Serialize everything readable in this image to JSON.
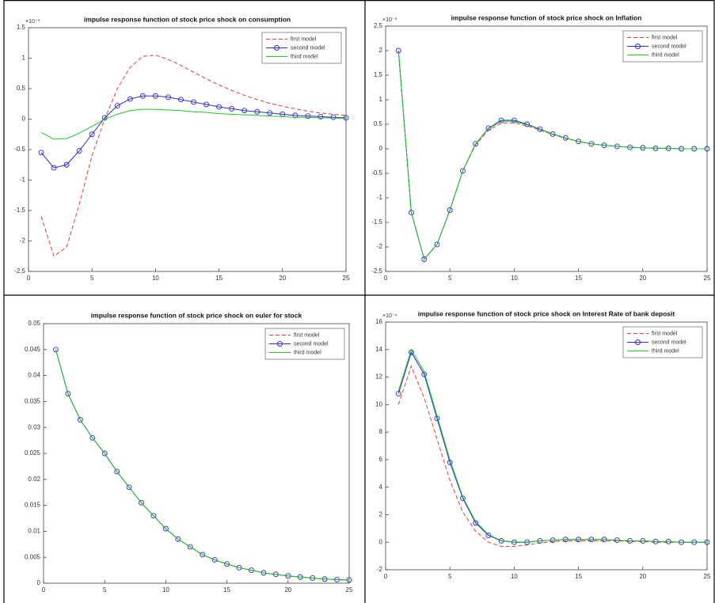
{
  "chart_data": [
    {
      "type": "line",
      "title": "impulse response function of stock price shock on consumption",
      "y_multiplier": "×10⁻³",
      "x": [
        1,
        2,
        3,
        4,
        5,
        6,
        7,
        8,
        9,
        10,
        11,
        12,
        13,
        14,
        15,
        16,
        17,
        18,
        19,
        20,
        21,
        22,
        23,
        24,
        25
      ],
      "xlim": [
        0,
        25
      ],
      "xticks": [
        0,
        5,
        10,
        15,
        20,
        25
      ],
      "ylim": [
        -2.5,
        1.5
      ],
      "yticks": [
        -2.5,
        -2,
        -1.5,
        -1,
        -0.5,
        0,
        0.5,
        1,
        1.5
      ],
      "legend": "upper right",
      "series": [
        {
          "name": "first model",
          "color": "#e03c3c",
          "linestyle": "dashed",
          "values": [
            -1.6,
            -2.25,
            -2.1,
            -1.4,
            -0.6,
            0.0,
            0.5,
            0.85,
            1.03,
            1.05,
            0.98,
            0.88,
            0.77,
            0.66,
            0.56,
            0.47,
            0.39,
            0.32,
            0.26,
            0.21,
            0.17,
            0.13,
            0.1,
            0.08,
            0.06
          ]
        },
        {
          "name": "second model",
          "color": "#2b2bd6",
          "linestyle": "solid",
          "marker": "o",
          "values": [
            -0.55,
            -0.8,
            -0.75,
            -0.52,
            -0.25,
            0.02,
            0.22,
            0.33,
            0.38,
            0.38,
            0.36,
            0.32,
            0.28,
            0.24,
            0.2,
            0.17,
            0.14,
            0.12,
            0.1,
            0.08,
            0.06,
            0.05,
            0.04,
            0.03,
            0.02
          ]
        },
        {
          "name": "third model",
          "color": "#22c722",
          "linestyle": "solid",
          "values": [
            -0.22,
            -0.33,
            -0.32,
            -0.23,
            -0.12,
            0.0,
            0.08,
            0.14,
            0.16,
            0.16,
            0.15,
            0.14,
            0.12,
            0.11,
            0.09,
            0.08,
            0.07,
            0.06,
            0.05,
            0.04,
            0.03,
            0.03,
            0.02,
            0.02,
            0.01
          ]
        }
      ]
    },
    {
      "type": "line",
      "title": "impulse response function of  stock price shock on Inflation",
      "y_multiplier": "×10⁻³",
      "x": [
        1,
        2,
        3,
        4,
        5,
        6,
        7,
        8,
        9,
        10,
        11,
        12,
        13,
        14,
        15,
        16,
        17,
        18,
        19,
        20,
        21,
        22,
        23,
        24,
        25
      ],
      "xlim": [
        0,
        25
      ],
      "xticks": [
        0,
        5,
        10,
        15,
        20,
        25
      ],
      "ylim": [
        -2.5,
        2.5
      ],
      "yticks": [
        -2.5,
        -2,
        -1.5,
        -1,
        -0.5,
        0,
        0.5,
        1,
        1.5,
        2,
        2.5
      ],
      "legend": "upper right",
      "series": [
        {
          "name": "first model",
          "color": "#e03c3c",
          "linestyle": "dashed",
          "values": [
            2.0,
            -1.3,
            -2.25,
            -1.95,
            -1.25,
            -0.45,
            0.08,
            0.38,
            0.52,
            0.53,
            0.47,
            0.38,
            0.29,
            0.21,
            0.15,
            0.1,
            0.07,
            0.05,
            0.03,
            0.02,
            0.01,
            0.01,
            0.0,
            0.0,
            0.0
          ]
        },
        {
          "name": "second model",
          "color": "#2b2bd6",
          "linestyle": "solid",
          "marker": "o",
          "values": [
            2.0,
            -1.3,
            -2.25,
            -1.95,
            -1.25,
            -0.45,
            0.1,
            0.42,
            0.58,
            0.58,
            0.5,
            0.4,
            0.3,
            0.22,
            0.15,
            0.1,
            0.07,
            0.05,
            0.03,
            0.02,
            0.01,
            0.01,
            0.0,
            0.0,
            0.0
          ]
        },
        {
          "name": "third model",
          "color": "#22c722",
          "linestyle": "solid",
          "values": [
            2.0,
            -1.3,
            -2.25,
            -1.95,
            -1.25,
            -0.45,
            0.1,
            0.41,
            0.56,
            0.56,
            0.49,
            0.39,
            0.3,
            0.22,
            0.15,
            0.1,
            0.07,
            0.05,
            0.03,
            0.02,
            0.01,
            0.01,
            0.0,
            0.0,
            0.0
          ]
        }
      ]
    },
    {
      "type": "line",
      "title": "impulse response function of  stock price shock on euler for stock",
      "x": [
        1,
        2,
        3,
        4,
        5,
        6,
        7,
        8,
        9,
        10,
        11,
        12,
        13,
        14,
        15,
        16,
        17,
        18,
        19,
        20,
        21,
        22,
        23,
        24,
        25
      ],
      "xlim": [
        0,
        25
      ],
      "xticks": [
        0,
        5,
        10,
        15,
        20,
        25
      ],
      "ylim": [
        0,
        0.05
      ],
      "yticks": [
        0,
        0.005,
        0.01,
        0.015,
        0.02,
        0.025,
        0.03,
        0.035,
        0.04,
        0.045,
        0.05
      ],
      "legend": "upper right",
      "series": [
        {
          "name": "first model",
          "color": "#e03c3c",
          "linestyle": "dashed",
          "values": [
            0.045,
            0.0365,
            0.0315,
            0.028,
            0.025,
            0.0215,
            0.0185,
            0.0155,
            0.013,
            0.0105,
            0.0085,
            0.007,
            0.0055,
            0.0045,
            0.0037,
            0.003,
            0.0025,
            0.002,
            0.0017,
            0.0014,
            0.0012,
            0.001,
            0.0008,
            0.0007,
            0.0006
          ]
        },
        {
          "name": "second model",
          "color": "#2b2bd6",
          "linestyle": "solid",
          "marker": "o",
          "values": [
            0.045,
            0.0365,
            0.0315,
            0.028,
            0.025,
            0.0215,
            0.0185,
            0.0155,
            0.013,
            0.0105,
            0.0085,
            0.007,
            0.0055,
            0.0045,
            0.0037,
            0.003,
            0.0025,
            0.002,
            0.0017,
            0.0014,
            0.0012,
            0.001,
            0.0008,
            0.0007,
            0.0006
          ]
        },
        {
          "name": "third model",
          "color": "#22c722",
          "linestyle": "solid",
          "values": [
            0.045,
            0.0365,
            0.0315,
            0.028,
            0.025,
            0.0215,
            0.0185,
            0.0155,
            0.013,
            0.0105,
            0.0085,
            0.007,
            0.0055,
            0.0045,
            0.0037,
            0.003,
            0.0025,
            0.002,
            0.0017,
            0.0014,
            0.0012,
            0.001,
            0.0008,
            0.0007,
            0.0006
          ]
        }
      ]
    },
    {
      "type": "line",
      "title": "impulse response function of  stock price shock on Interest Rate of bank deposit",
      "y_multiplier": "×10⁻⁴",
      "x": [
        1,
        2,
        3,
        4,
        5,
        6,
        7,
        8,
        9,
        10,
        11,
        12,
        13,
        14,
        15,
        16,
        17,
        18,
        19,
        20,
        21,
        22,
        23,
        24,
        25
      ],
      "xlim": [
        0,
        25
      ],
      "xticks": [
        0,
        5,
        10,
        15,
        20,
        25
      ],
      "ylim": [
        -2,
        16
      ],
      "yticks": [
        -2,
        0,
        2,
        4,
        6,
        8,
        10,
        12,
        14,
        16
      ],
      "legend": "upper right",
      "series": [
        {
          "name": "first model",
          "color": "#e03c3c",
          "linestyle": "dashed",
          "values": [
            10.0,
            12.8,
            10.5,
            7.5,
            4.5,
            2.2,
            0.8,
            0.0,
            -0.3,
            -0.3,
            -0.2,
            -0.05,
            0.05,
            0.1,
            0.1,
            0.1,
            0.1,
            0.1,
            0.05,
            0.05,
            0.0,
            0.0,
            0.0,
            0.0,
            0.0
          ]
        },
        {
          "name": "second model",
          "color": "#2b2bd6",
          "linestyle": "solid",
          "marker": "o",
          "values": [
            10.8,
            13.8,
            12.2,
            9.0,
            5.8,
            3.2,
            1.4,
            0.5,
            0.1,
            0.0,
            0.0,
            0.1,
            0.15,
            0.2,
            0.2,
            0.2,
            0.2,
            0.15,
            0.1,
            0.1,
            0.05,
            0.05,
            0.0,
            0.0,
            0.0
          ]
        },
        {
          "name": "third model",
          "color": "#22c722",
          "linestyle": "solid",
          "values": [
            11.0,
            14.0,
            12.4,
            9.2,
            6.0,
            3.3,
            1.5,
            0.55,
            0.12,
            0.02,
            0.02,
            0.1,
            0.15,
            0.2,
            0.2,
            0.2,
            0.2,
            0.15,
            0.1,
            0.1,
            0.05,
            0.05,
            0.0,
            0.0,
            0.0
          ]
        }
      ]
    }
  ]
}
